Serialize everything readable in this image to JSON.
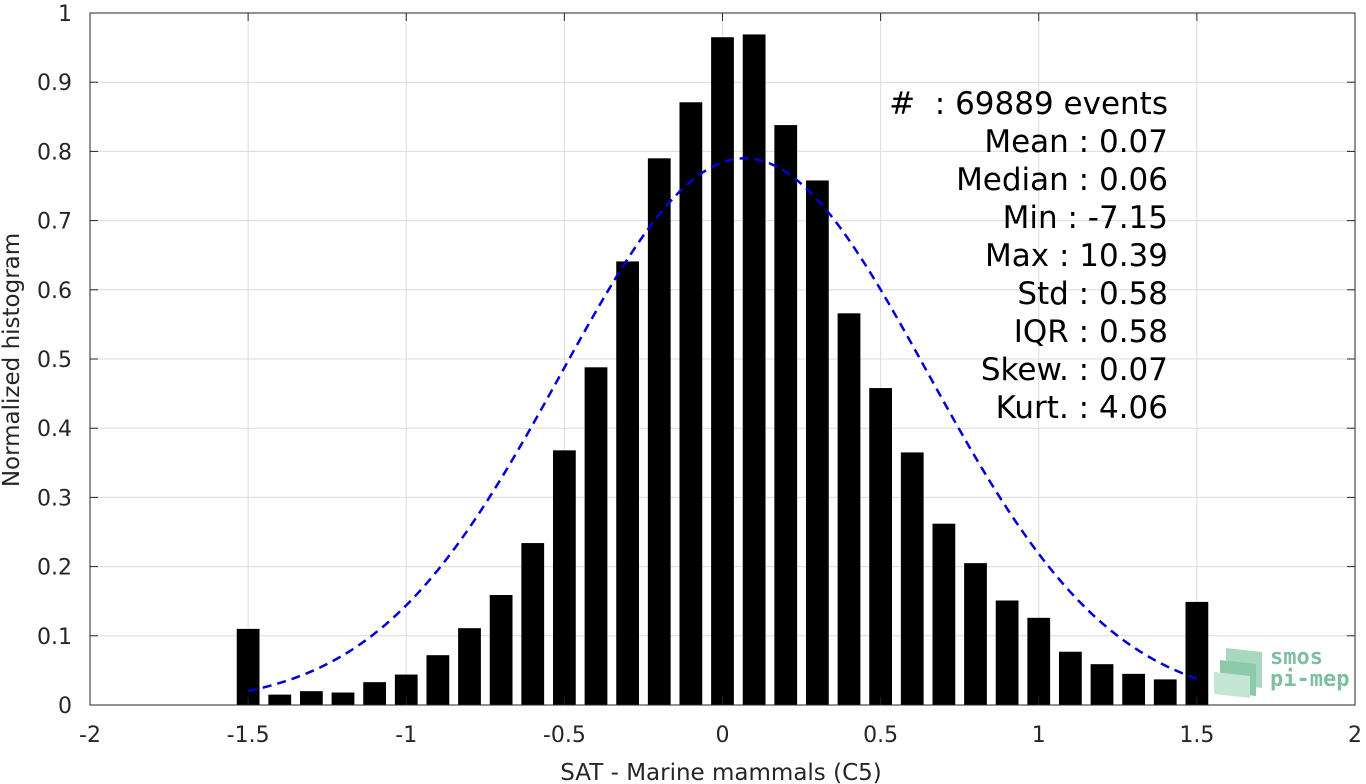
{
  "chart_data": {
    "type": "bar",
    "title": "",
    "xlabel": "SAT - Marine mammals (C5)",
    "ylabel": "Normalized histogram",
    "xlim": [
      -2,
      2
    ],
    "ylim": [
      0,
      1
    ],
    "x_ticks": [
      "-2",
      "-1.5",
      "-1",
      "-0.5",
      "0",
      "0.5",
      "1",
      "1.5",
      "2"
    ],
    "y_ticks": [
      "0",
      "0.1",
      "0.2",
      "0.3",
      "0.4",
      "0.5",
      "0.6",
      "0.7",
      "0.8",
      "0.9",
      "1"
    ],
    "grid": true,
    "bin_width": 0.1,
    "x": [
      -1.5,
      -1.4,
      -1.3,
      -1.2,
      -1.1,
      -1.0,
      -0.9,
      -0.8,
      -0.7,
      -0.6,
      -0.5,
      -0.4,
      -0.3,
      -0.2,
      -0.1,
      0.0,
      0.1,
      0.2,
      0.3,
      0.4,
      0.5,
      0.6,
      0.7,
      0.8,
      0.9,
      1.0,
      1.1,
      1.2,
      1.3,
      1.4,
      1.5
    ],
    "values": [
      0.11,
      0.015,
      0.02,
      0.018,
      0.033,
      0.044,
      0.072,
      0.111,
      0.159,
      0.234,
      0.368,
      0.488,
      0.641,
      0.79,
      0.871,
      0.965,
      0.969,
      0.838,
      0.758,
      0.566,
      0.458,
      0.365,
      0.262,
      0.205,
      0.151,
      0.126,
      0.077,
      0.059,
      0.045,
      0.037,
      0.149
    ],
    "fit_curve": {
      "type": "gaussian",
      "mean": 0.07,
      "std": 0.58,
      "peak": 0.79,
      "x_range": [
        -1.5,
        1.5
      ],
      "color": "#0000d8"
    },
    "bar_color": "#000000",
    "annotations": [
      {
        "label": "#  ",
        "value": ": 69889 events"
      },
      {
        "label": "Mean ",
        "value": ": 0.07"
      },
      {
        "label": "Median ",
        "value": ": 0.06"
      },
      {
        "label": "Min ",
        "value": ": -7.15"
      },
      {
        "label": "Max ",
        "value": ": 10.39"
      },
      {
        "label": "Std ",
        "value": ": 0.58"
      },
      {
        "label": "IQR ",
        "value": ": 0.58"
      },
      {
        "label": "Skew. ",
        "value": ": 0.07"
      },
      {
        "label": "Kurt. ",
        "value": ": 4.06"
      }
    ]
  },
  "logo": {
    "line1": "smos",
    "line2": "pi-mep"
  }
}
